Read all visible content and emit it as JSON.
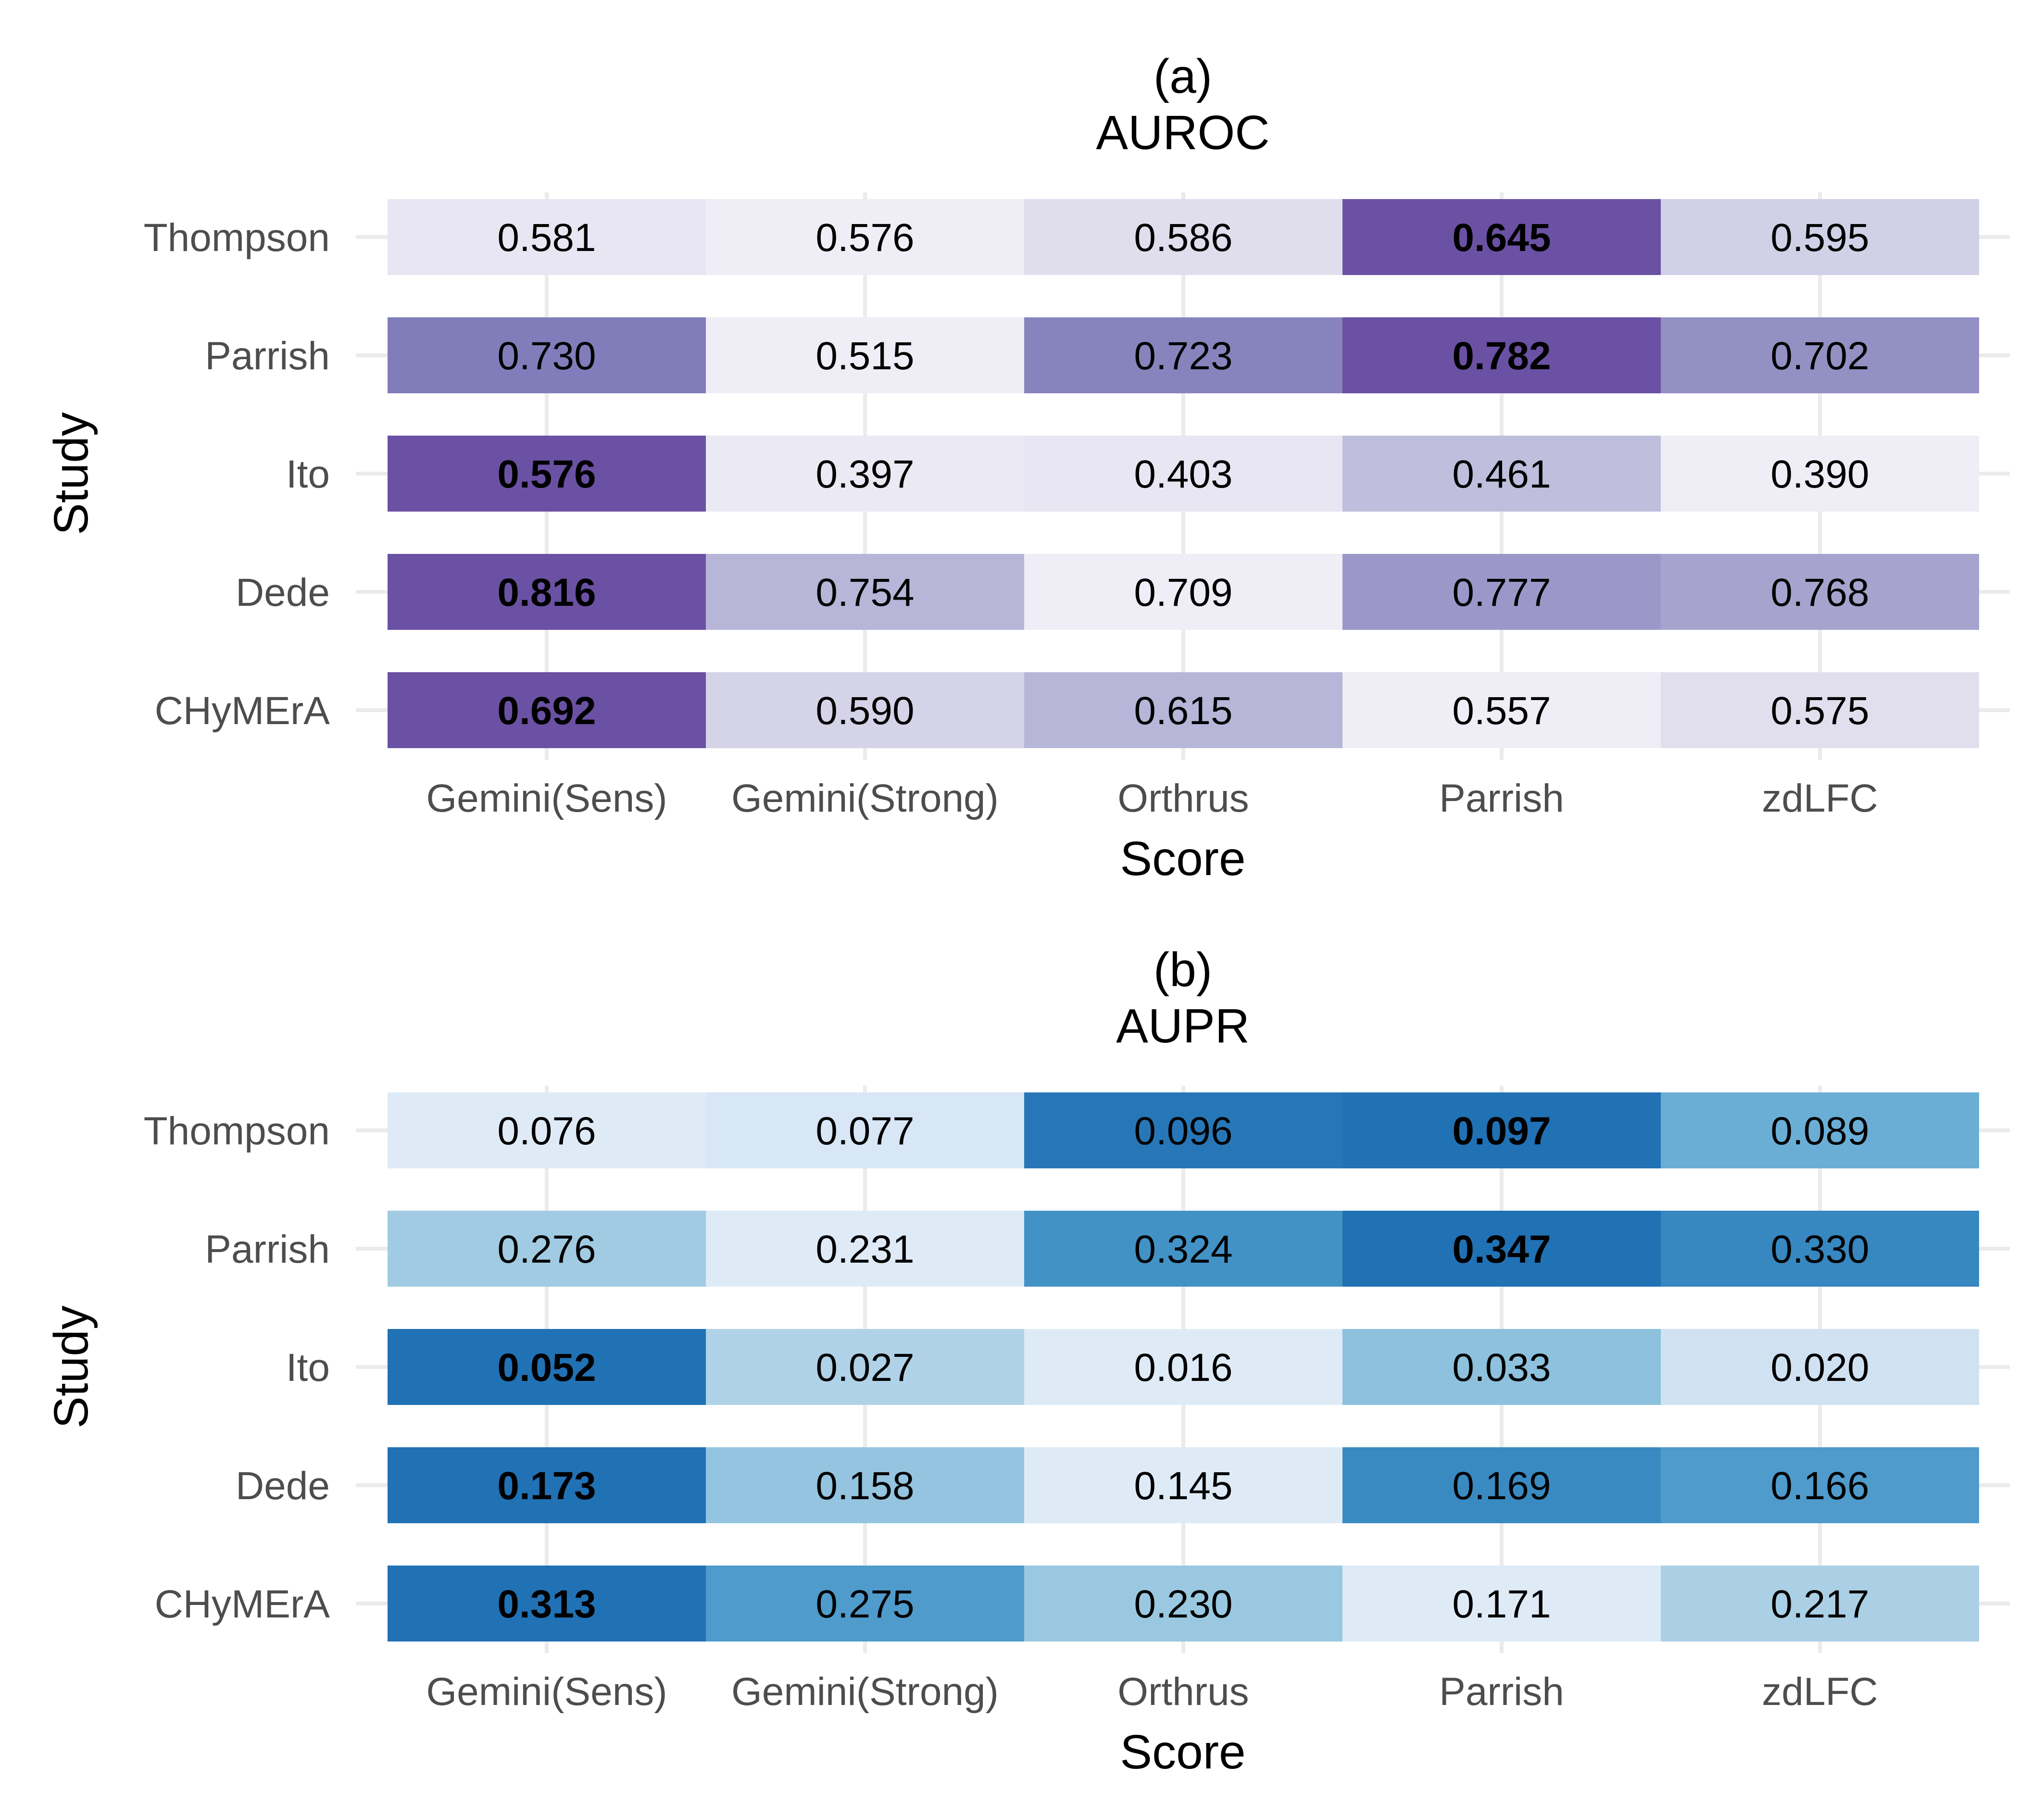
{
  "chart_data": [
    {
      "type": "heatmap",
      "title": "(a)",
      "subtitle": "AUROC",
      "xlabel": "Score",
      "ylabel": "Study",
      "x_categories": [
        "Gemini(Sens)",
        "Gemini(Strong)",
        "Orthrus",
        "Parrish",
        "zdLFC"
      ],
      "y_categories": [
        "Thompson",
        "Parrish",
        "Ito",
        "Dede",
        "CHyMErA"
      ],
      "values": [
        [
          "0.581",
          "0.576",
          "0.586",
          "0.645",
          "0.595"
        ],
        [
          "0.730",
          "0.515",
          "0.723",
          "0.782",
          "0.702"
        ],
        [
          "0.576",
          "0.397",
          "0.403",
          "0.461",
          "0.390"
        ],
        [
          "0.816",
          "0.754",
          "0.709",
          "0.777",
          "0.768"
        ],
        [
          "0.692",
          "0.590",
          "0.615",
          "0.557",
          "0.575"
        ]
      ],
      "best_in_row": [
        3,
        3,
        0,
        0,
        0
      ],
      "colors": [
        [
          "#e8e6f2",
          "#efedf5",
          "#e0dded",
          "#6a51a3",
          "#d0d0e6"
        ],
        [
          "#807dba",
          "#efedf5",
          "#8784bd",
          "#6a51a3",
          "#9390c4"
        ],
        [
          "#6a51a3",
          "#ebe9f3",
          "#e8e6f2",
          "#bfbedd",
          "#efedf5"
        ],
        [
          "#6a51a3",
          "#b7b6d9",
          "#efedf5",
          "#9b98c9",
          "#a6a4ce"
        ],
        [
          "#6a51a3",
          "#d4d3e8",
          "#b7b6d9",
          "#efedf5",
          "#e1dfee"
        ]
      ]
    },
    {
      "type": "heatmap",
      "title": "(b)",
      "subtitle": "AUPR",
      "xlabel": "Score",
      "ylabel": "Study",
      "x_categories": [
        "Gemini(Sens)",
        "Gemini(Strong)",
        "Orthrus",
        "Parrish",
        "zdLFC"
      ],
      "y_categories": [
        "Thompson",
        "Parrish",
        "Ito",
        "Dede",
        "CHyMErA"
      ],
      "values": [
        [
          "0.076",
          "0.077",
          "0.096",
          "0.097",
          "0.089"
        ],
        [
          "0.276",
          "0.231",
          "0.324",
          "0.347",
          "0.330"
        ],
        [
          "0.052",
          "0.027",
          "0.016",
          "0.033",
          "0.020"
        ],
        [
          "0.173",
          "0.158",
          "0.145",
          "0.169",
          "0.166"
        ],
        [
          "0.313",
          "0.275",
          "0.230",
          "0.171",
          "0.217"
        ]
      ],
      "best_in_row": [
        3,
        3,
        0,
        0,
        0
      ],
      "colors": [
        [
          "#deebf7",
          "#d8e7f5",
          "#2777b8",
          "#2171b5",
          "#6aaed6"
        ],
        [
          "#a1cbe2",
          "#deebf7",
          "#4292c6",
          "#2171b5",
          "#3787c0"
        ],
        [
          "#2171b5",
          "#b0d2e8",
          "#deebf7",
          "#8dc1dd",
          "#d0e1f2"
        ],
        [
          "#2171b5",
          "#94c4df",
          "#deebf7",
          "#3a8ac2",
          "#4f9bcb"
        ],
        [
          "#2171b5",
          "#4f9bcb",
          "#9ac8e0",
          "#deebf7",
          "#abd0e6"
        ]
      ]
    }
  ]
}
